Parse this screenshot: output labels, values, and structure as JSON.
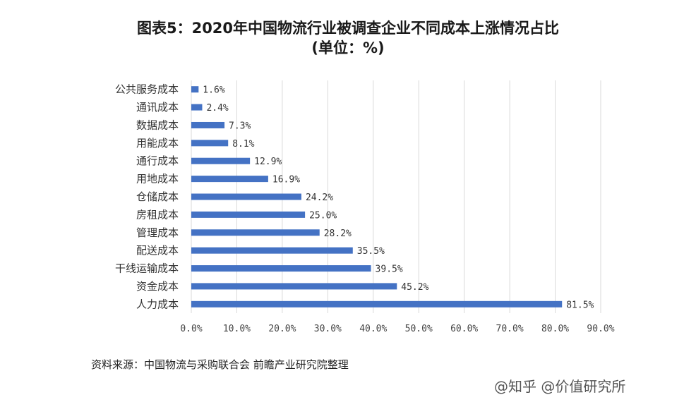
{
  "title_line1": "图表5：2020年中国物流行业被调查企业不同成本上涨情况占比",
  "title_line2": "(单位：%)",
  "source": "资料来源：中国物流与采购联合会 前瞻产业研究院整理",
  "watermark": "@知乎 @价值研究所",
  "colors": {
    "bar": "#4472C4",
    "grid": "#d9d9d9"
  },
  "chart_data": {
    "type": "bar",
    "orientation": "horizontal",
    "title": "图表5：2020年中国物流行业被调查企业不同成本上涨情况占比 (单位：%)",
    "categories": [
      "公共服务成本",
      "通讯成本",
      "数据成本",
      "用能成本",
      "通行成本",
      "用地成本",
      "仓储成本",
      "房租成本",
      "管理成本",
      "配送成本",
      "干线运输成本",
      "资金成本",
      "人力成本"
    ],
    "values": [
      1.6,
      2.4,
      7.3,
      8.1,
      12.9,
      16.9,
      24.2,
      25.0,
      28.2,
      35.5,
      39.5,
      45.2,
      81.5
    ],
    "value_labels": [
      "1.6%",
      "2.4%",
      "7.3%",
      "8.1%",
      "12.9%",
      "16.9%",
      "24.2%",
      "25.0%",
      "28.2%",
      "35.5%",
      "39.5%",
      "45.2%",
      "81.5%"
    ],
    "xlim": [
      0,
      90
    ],
    "xticks": [
      "0.0%",
      "10.0%",
      "20.0%",
      "30.0%",
      "40.0%",
      "50.0%",
      "60.0%",
      "70.0%",
      "80.0%",
      "90.0%"
    ],
    "xlabel": "",
    "ylabel": "",
    "grid": true,
    "legend": "none"
  }
}
